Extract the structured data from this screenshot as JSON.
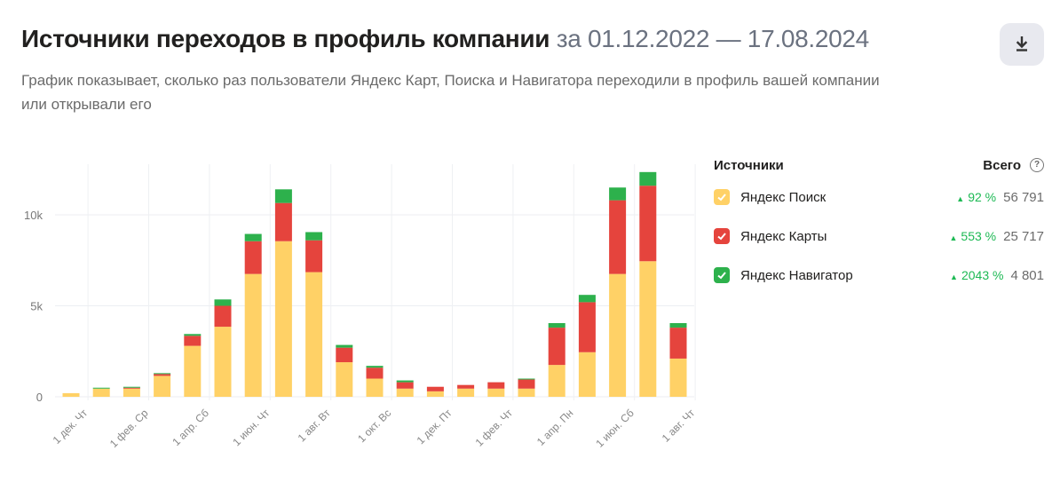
{
  "header": {
    "title": "Источники переходов в профиль компании",
    "period": "за 01.12.2022 — 17.08.2024",
    "description": "График показывает, сколько раз пользователи Яндекс Карт, Поиска и Навигатора переходили в профиль вашей компании или открывали его",
    "download_icon": "download-icon"
  },
  "legend": {
    "title": "Источники",
    "total_label": "Всего",
    "help_icon": "question-circle-icon",
    "items": [
      {
        "name": "Яндекс Поиск",
        "color": "#ffd166",
        "growth": "92 %",
        "total": "56 791"
      },
      {
        "name": "Яндекс Карты",
        "color": "#e5443d",
        "growth": "553 %",
        "total": "25 717"
      },
      {
        "name": "Яндекс Навигатор",
        "color": "#2db14c",
        "growth": "2043 %",
        "total": "4 801"
      }
    ]
  },
  "chart_data": {
    "type": "bar",
    "stacked": true,
    "yticks": [
      "0",
      "5k",
      "10k"
    ],
    "ylim": [
      0,
      12500
    ],
    "xtick_labels": [
      {
        "label": "1 дек. Чт",
        "index": 0
      },
      {
        "label": "1 фев. Ср",
        "index": 2
      },
      {
        "label": "1 апр. Сб",
        "index": 4
      },
      {
        "label": "1 июн. Чт",
        "index": 6
      },
      {
        "label": "1 авг. Вт",
        "index": 8
      },
      {
        "label": "1 окт. Вс",
        "index": 10
      },
      {
        "label": "1 дек. Пт",
        "index": 12
      },
      {
        "label": "1 фев. Чт",
        "index": 14
      },
      {
        "label": "1 апр. Пн",
        "index": 16
      },
      {
        "label": "1 июн. Сб",
        "index": 18
      },
      {
        "label": "1 авг. Чт",
        "index": 20
      }
    ],
    "series": [
      {
        "name": "Яндекс Поиск",
        "color": "#ffd166",
        "values": [
          200,
          450,
          450,
          1150,
          2800,
          3850,
          6750,
          8550,
          6850,
          1900,
          1000,
          450,
          300,
          450,
          450,
          450,
          1750,
          2450,
          6750,
          7450,
          2100
        ]
      },
      {
        "name": "Яндекс Карты",
        "color": "#e5443d",
        "values": [
          0,
          0,
          50,
          100,
          550,
          1150,
          1800,
          2100,
          1750,
          800,
          600,
          350,
          250,
          200,
          350,
          500,
          2050,
          2750,
          4050,
          4150,
          1700
        ]
      },
      {
        "name": "Яндекс Навигатор",
        "color": "#2db14c",
        "values": [
          0,
          50,
          50,
          50,
          100,
          350,
          400,
          750,
          450,
          150,
          100,
          100,
          0,
          0,
          0,
          50,
          250,
          400,
          700,
          750,
          250
        ]
      }
    ],
    "grid": true
  }
}
